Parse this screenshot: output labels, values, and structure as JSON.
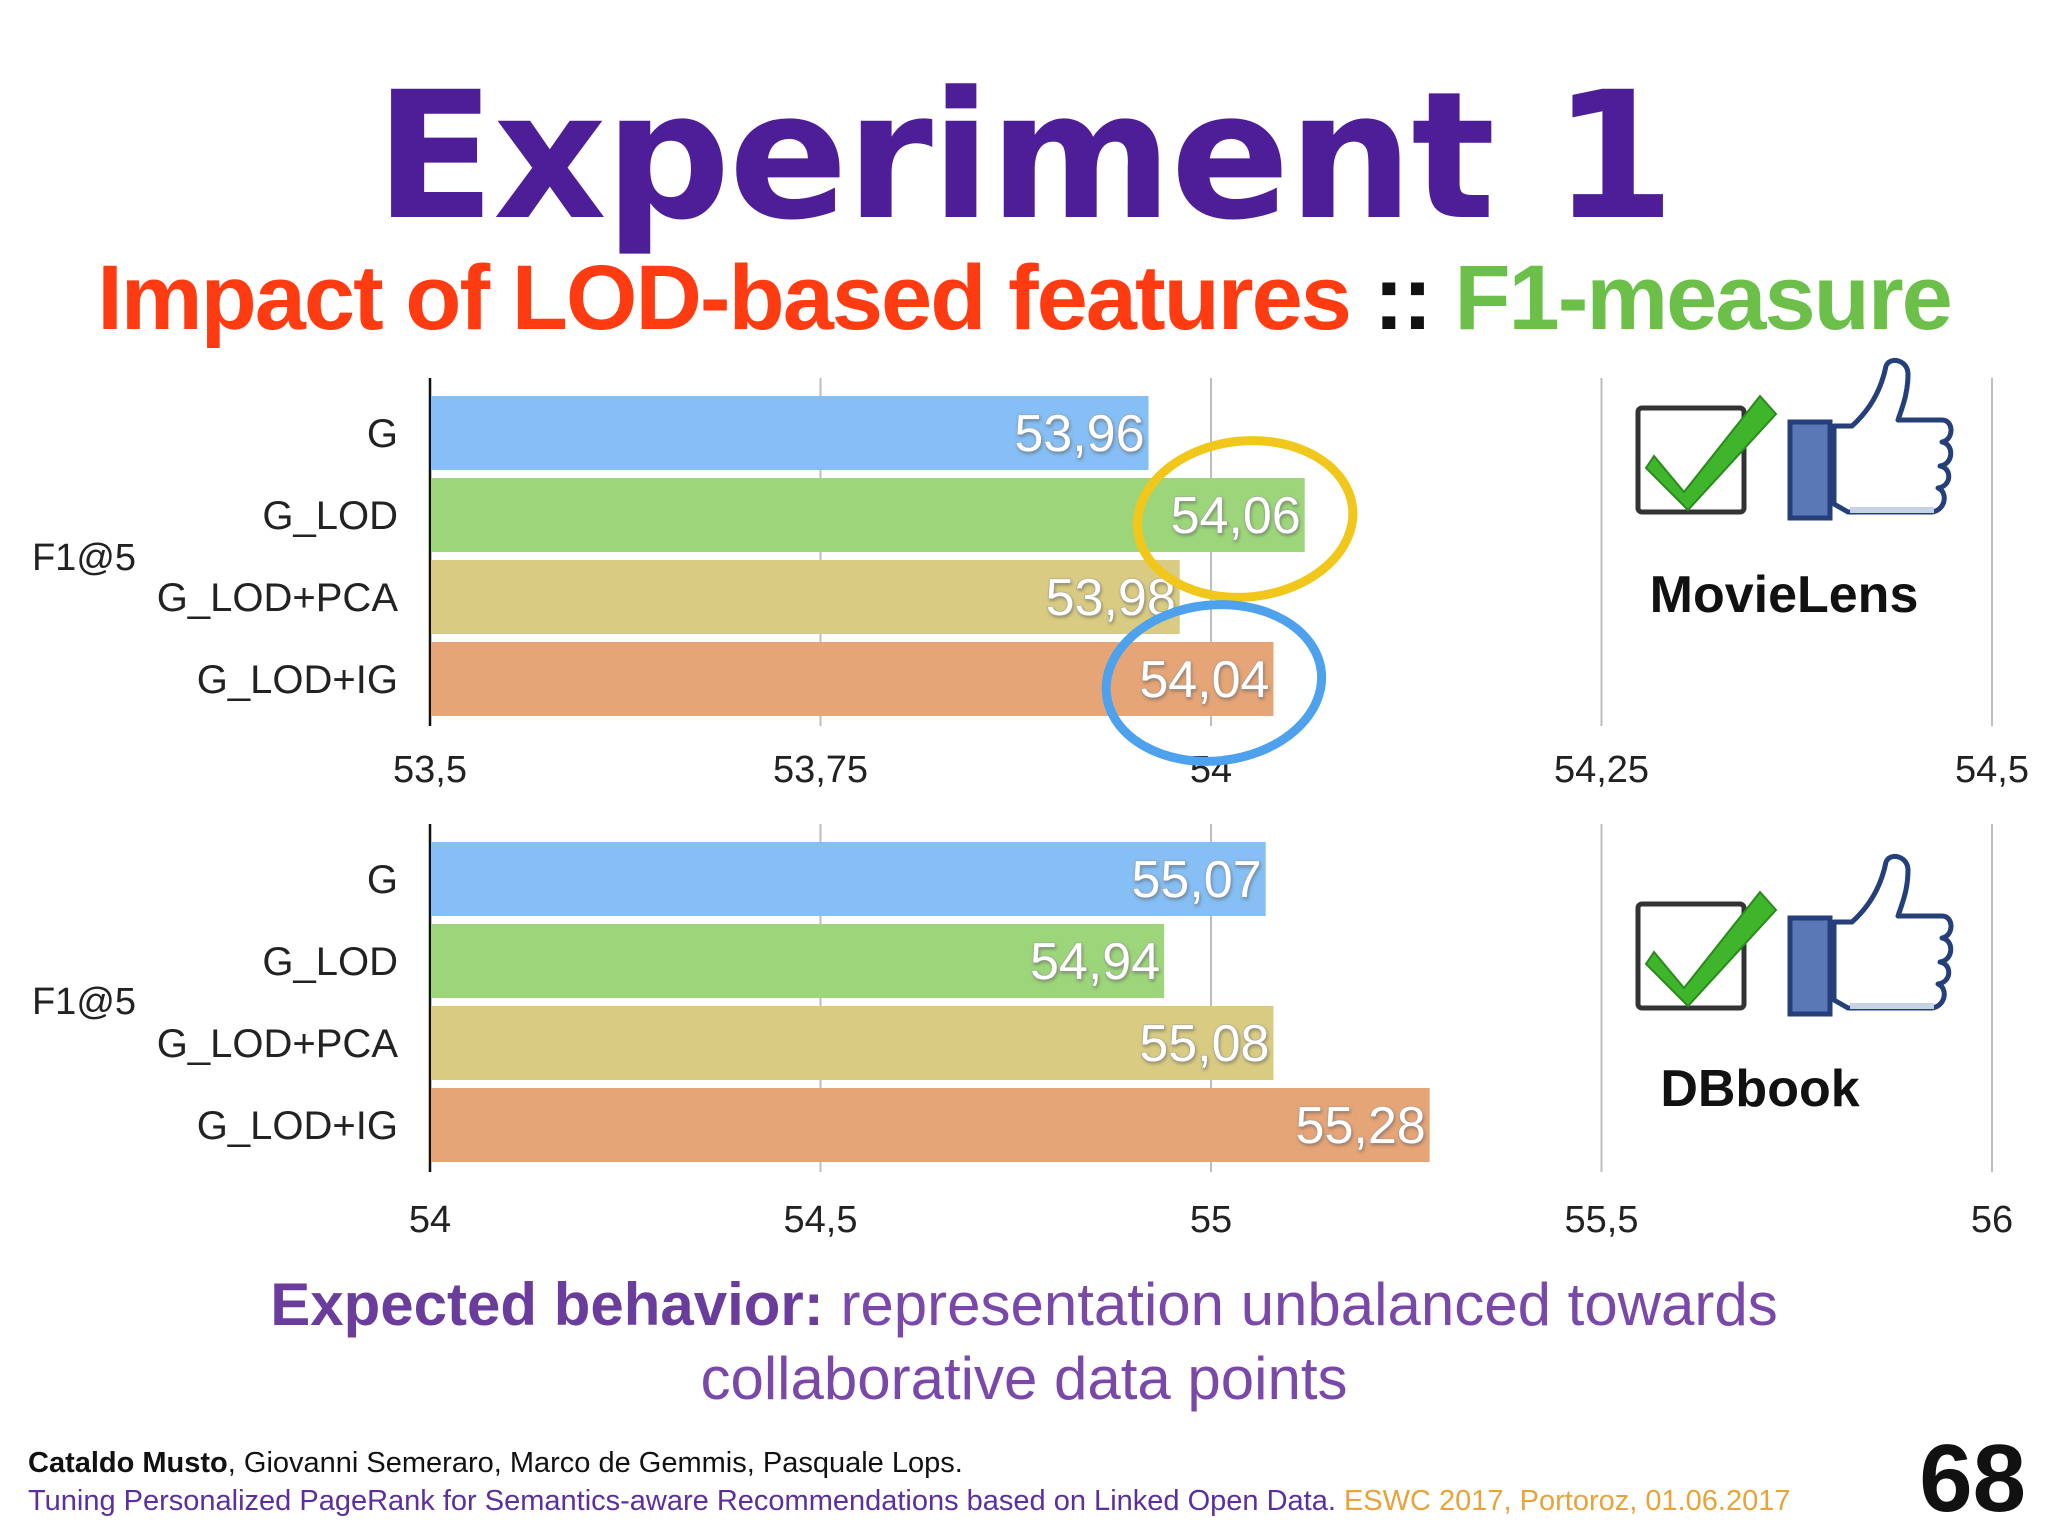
{
  "slide": {
    "title": "Experiment 1",
    "subtitle_part1": "Impact of LOD-based features",
    "subtitle_sep": "::",
    "subtitle_part2": "F1-measure",
    "expected_strong": "Expected behavior:",
    "expected_rest_line1": "representation unbalanced towards",
    "expected_rest_line2": "collaborative data points",
    "footer_author_bold": "Cataldo Musto",
    "footer_authors_rest": ", Giovanni Semeraro, Marco de Gemmis, Pasquale Lops.",
    "footer_paper": "Tuning Personalized PageRank for Semantics-aware Recommendations based on Linked Open Data.",
    "footer_venue": "ESWC 2017, Portoroz, 01.06.2017",
    "page_number": "68"
  },
  "colors": {
    "G": "#85bff5",
    "G_LOD": "#9dd67a",
    "G_LOD+PCA": "#d9cc82",
    "G_LOD+IG": "#e6a577",
    "highlight_yellow": "#f2c71c",
    "highlight_blue": "#4ea1ec"
  },
  "chart_data": [
    {
      "type": "bar",
      "orientation": "horizontal",
      "dataset": "MovieLens",
      "metric": "F1@5",
      "categories": [
        "G",
        "G_LOD",
        "G_LOD+PCA",
        "G_LOD+IG"
      ],
      "values": [
        53.96,
        54.06,
        53.98,
        54.04
      ],
      "value_labels": [
        "53,96",
        "54,06",
        "53,98",
        "54,04"
      ],
      "xlim": [
        53.5,
        54.5
      ],
      "ticks": [
        53.5,
        53.75,
        54,
        54.25,
        54.5
      ],
      "tick_labels": [
        "53,5",
        "53,75",
        "54",
        "54,25",
        "54,5"
      ],
      "grid": true,
      "highlights": [
        {
          "category": "G_LOD",
          "color": "yellow"
        },
        {
          "category": "G_LOD+IG",
          "color": "blue"
        }
      ],
      "icons": [
        "green-checkmark-icon",
        "thumbs-up-icon"
      ]
    },
    {
      "type": "bar",
      "orientation": "horizontal",
      "dataset": "DBbook",
      "metric": "F1@5",
      "categories": [
        "G",
        "G_LOD",
        "G_LOD+PCA",
        "G_LOD+IG"
      ],
      "values": [
        55.07,
        54.94,
        55.08,
        55.28
      ],
      "value_labels": [
        "55,07",
        "54,94",
        "55,08",
        "55,28"
      ],
      "xlim": [
        54,
        56
      ],
      "ticks": [
        54,
        54.5,
        55,
        55.5,
        56
      ],
      "tick_labels": [
        "54",
        "54,5",
        "55",
        "55,5",
        "56"
      ],
      "grid": true,
      "highlights": [],
      "icons": [
        "green-checkmark-icon",
        "thumbs-up-icon"
      ]
    }
  ]
}
